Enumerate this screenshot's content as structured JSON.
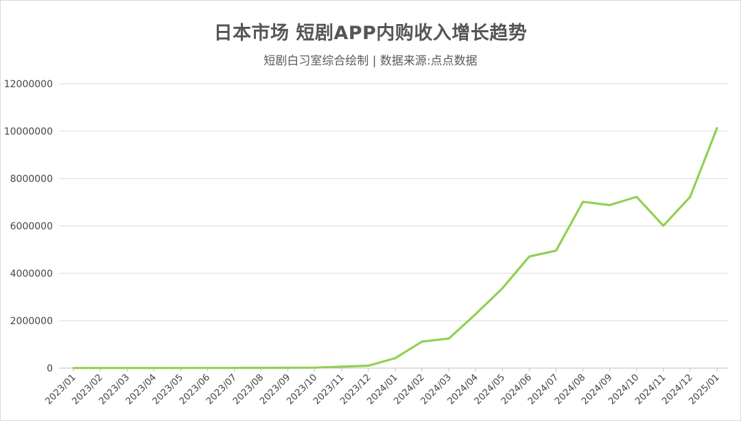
{
  "chart_data": {
    "type": "line",
    "title": "日本市场 短剧APP内购收入增长趋势",
    "subtitle": "短剧白习室综合绘制 | 数据来源:点点数据",
    "categories": [
      "2023/01",
      "2023/02",
      "2023/03",
      "2023/04",
      "2023/05",
      "2023/06",
      "2023/07",
      "2023/08",
      "2023/09",
      "2023/10",
      "2023/11",
      "2023/12",
      "2024/01",
      "2024/02",
      "2024/03",
      "2024/04",
      "2024/05",
      "2024/06",
      "2024/07",
      "2024/08",
      "2024/09",
      "2024/10",
      "2024/11",
      "2024/12",
      "2025/01"
    ],
    "series": [
      {
        "values": [
          5000,
          5000,
          5000,
          5000,
          5000,
          8000,
          10000,
          12000,
          15000,
          20000,
          60000,
          100000,
          420000,
          1120000,
          1250000,
          2280000,
          3370000,
          4710000,
          4960000,
          7020000,
          6880000,
          7230000,
          6010000,
          7230000,
          10130000
        ],
        "color": "#92d050"
      }
    ],
    "ylim": [
      0,
      12000000
    ],
    "yticks": [
      "0",
      "2000000",
      "4000000",
      "6000000",
      "8000000",
      "10000000",
      "12000000"
    ],
    "grid": true,
    "legend": "none"
  }
}
